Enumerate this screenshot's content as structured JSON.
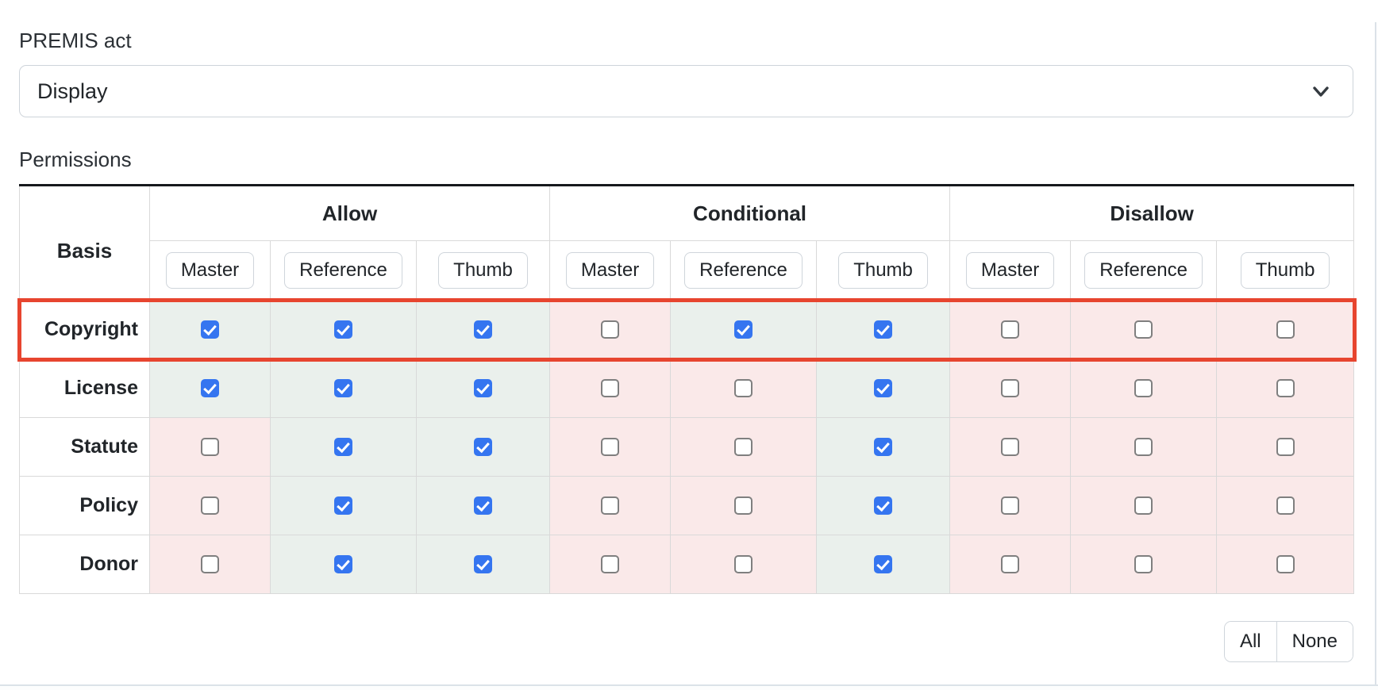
{
  "form": {
    "premis_act_label": "PREMIS act",
    "premis_act_value": "Display",
    "permissions_label": "Permissions"
  },
  "table": {
    "basis_header": "Basis",
    "column_groups": [
      {
        "label": "Allow",
        "columns": [
          "Master",
          "Reference",
          "Thumb"
        ]
      },
      {
        "label": "Conditional",
        "columns": [
          "Master",
          "Reference",
          "Thumb"
        ]
      },
      {
        "label": "Disallow",
        "columns": [
          "Master",
          "Reference",
          "Thumb"
        ]
      }
    ],
    "rows": [
      {
        "label": "Copyright",
        "highlighted": true,
        "checks": [
          true,
          true,
          true,
          false,
          true,
          true,
          false,
          false,
          false
        ]
      },
      {
        "label": "License",
        "highlighted": false,
        "checks": [
          true,
          true,
          true,
          false,
          false,
          true,
          false,
          false,
          false
        ]
      },
      {
        "label": "Statute",
        "highlighted": false,
        "checks": [
          false,
          true,
          true,
          false,
          false,
          true,
          false,
          false,
          false
        ]
      },
      {
        "label": "Policy",
        "highlighted": false,
        "checks": [
          false,
          true,
          true,
          false,
          false,
          true,
          false,
          false,
          false
        ]
      },
      {
        "label": "Donor",
        "highlighted": false,
        "checks": [
          false,
          true,
          true,
          false,
          false,
          true,
          false,
          false,
          false
        ]
      }
    ]
  },
  "actions": {
    "all_label": "All",
    "none_label": "None"
  },
  "icons": {
    "select_chevron": "chevron-down-icon"
  },
  "colors": {
    "checkbox_checked_blue": "#3575f0",
    "cell_checked_bg": "#eaf0ec",
    "cell_unchecked_bg": "#fae9e9",
    "highlight_border_red": "#e7452f",
    "table_top_border": "#16191d",
    "panel_border": "#dbe2e8"
  }
}
